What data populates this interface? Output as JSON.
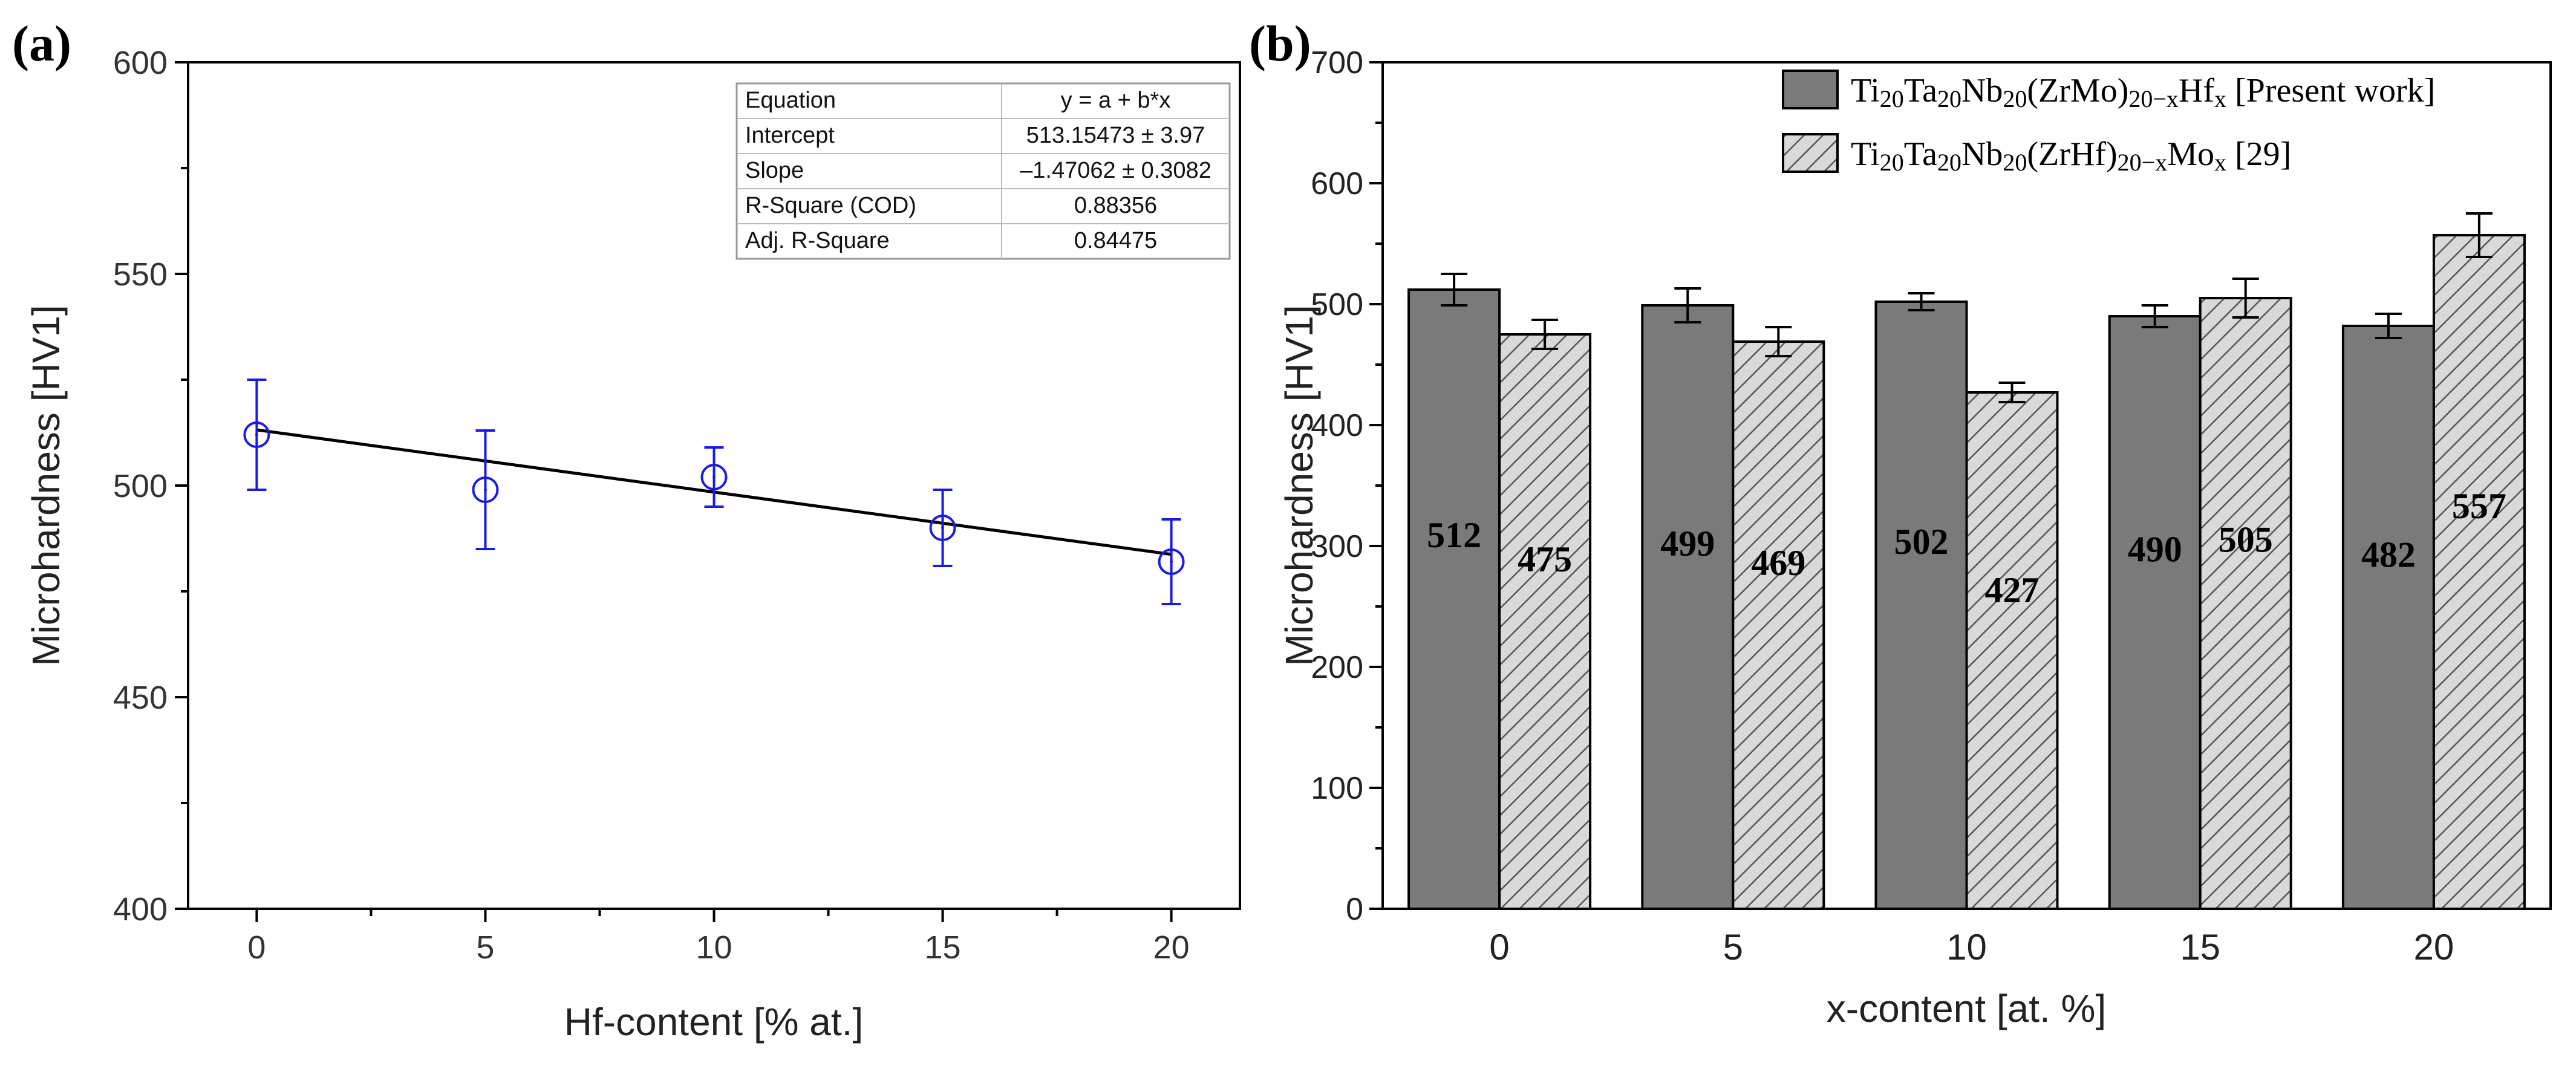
{
  "chart_data": [
    {
      "panel": "(a)",
      "type": "scatter",
      "xlabel": "Hf-content [% at.]",
      "ylabel": "Microhardness [HV1]",
      "xlim": [
        -1.5,
        21.5
      ],
      "ylim": [
        400,
        600
      ],
      "xticks": [
        "0",
        "5",
        "10",
        "15",
        "20"
      ],
      "yticks": [
        "400",
        "450",
        "500",
        "550",
        "600"
      ],
      "points": [
        {
          "x": 0,
          "y": 512,
          "err": 13
        },
        {
          "x": 5,
          "y": 499,
          "err": 14
        },
        {
          "x": 10,
          "y": 502,
          "err": 7
        },
        {
          "x": 15,
          "y": 490,
          "err": 9
        },
        {
          "x": 20,
          "y": 482,
          "err": 10
        }
      ],
      "fit": {
        "intercept": 513.15473,
        "slope": -1.47062,
        "x_range": [
          0,
          20
        ]
      },
      "colors": {
        "points": "#1a1ae6",
        "fit": "#000000"
      },
      "table": [
        [
          "Equation",
          "y = a + b*x"
        ],
        [
          "Intercept",
          "513.15473 ± 3.97"
        ],
        [
          "Slope",
          "–1.47062 ± 0.3082"
        ],
        [
          "R-Square (COD)",
          "0.88356"
        ],
        [
          "Adj. R-Square",
          "0.84475"
        ]
      ]
    },
    {
      "panel": "(b)",
      "type": "bar",
      "xlabel": "x-content [at. %]",
      "ylabel": "Microhardness [HV1]",
      "ylim": [
        0,
        700
      ],
      "yticks": [
        "0",
        "100",
        "200",
        "300",
        "400",
        "500",
        "600",
        "700"
      ],
      "categories": [
        "0",
        "5",
        "10",
        "15",
        "20"
      ],
      "series": [
        {
          "name": "Ti20Ta20Nb20(ZrMo)20-xHfx [Present work]",
          "legend_parts": [
            "Ti",
            "20",
            "Ta",
            "20",
            "Nb",
            "20",
            "(ZrMo)",
            "20−x",
            "Hf",
            "x",
            " [Present work]"
          ],
          "values": [
            512,
            499,
            502,
            490,
            482
          ],
          "errors": [
            13,
            14,
            7,
            9,
            10
          ],
          "labels": [
            "512",
            "499",
            "502",
            "490",
            "482"
          ],
          "fill": "#7a7a7a",
          "pattern": "solid"
        },
        {
          "name": "Ti20Ta20Nb20(ZrHf)20-xMox [29]",
          "legend_parts": [
            "Ti",
            "20",
            "Ta",
            "20",
            "Nb",
            "20",
            "(ZrHf)",
            "20−x",
            "Mo",
            "x",
            " [29]"
          ],
          "values": [
            475,
            469,
            427,
            505,
            557
          ],
          "errors": [
            12,
            12,
            8,
            16,
            18
          ],
          "labels": [
            "475",
            "469",
            "427",
            "505",
            "557"
          ],
          "fill": "#d9d9d9",
          "pattern": "hatched"
        }
      ]
    }
  ]
}
